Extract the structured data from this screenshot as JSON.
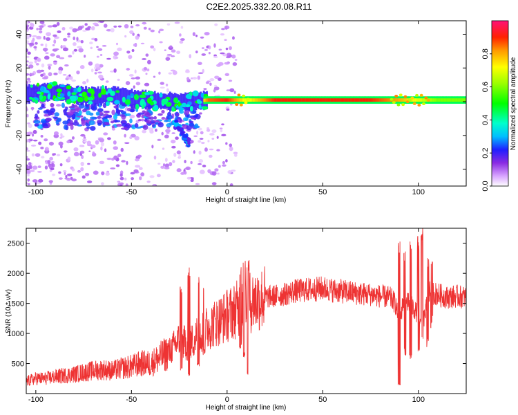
{
  "title": "C2E2.2025.332.20.08.R11",
  "chart_data": [
    {
      "type": "heatmap",
      "xlabel": "Height of straight line (km)",
      "ylabel": "Frequency (Hz)",
      "xlim": [
        -105,
        125
      ],
      "ylim": [
        -50,
        48
      ],
      "xticks": [
        -100,
        -50,
        0,
        50,
        100
      ],
      "yticks": [
        -40,
        -20,
        0,
        20,
        40
      ],
      "colorbar": {
        "label": "Normalized spectral amplitude",
        "range": [
          0,
          1
        ],
        "ticks": [
          0.0,
          0.2,
          0.4,
          0.6,
          0.8
        ]
      },
      "ridge": {
        "frequency_hz": 1,
        "x_start": -15,
        "x_end": 125,
        "peak_amplitude": 0.95,
        "segments": [
          {
            "x": -100,
            "f": 5,
            "a": 0.35
          },
          {
            "x": -90,
            "f": 6,
            "a": 0.3
          },
          {
            "x": -80,
            "f": 4,
            "a": 0.35
          },
          {
            "x": -70,
            "f": 3,
            "a": 0.3
          },
          {
            "x": -60,
            "f": 4,
            "a": 0.3
          },
          {
            "x": -50,
            "f": 2,
            "a": 0.4
          },
          {
            "x": -40,
            "f": 1,
            "a": 0.4
          },
          {
            "x": -30,
            "f": 0,
            "a": 0.35
          },
          {
            "x": -20,
            "f": 0,
            "a": 0.4
          },
          {
            "x": -10,
            "f": 1,
            "a": 0.85
          },
          {
            "x": 0,
            "f": 1,
            "a": 0.9
          },
          {
            "x": 10,
            "f": 1,
            "a": 0.7
          },
          {
            "x": 25,
            "f": 1,
            "a": 0.9
          },
          {
            "x": 50,
            "f": 1,
            "a": 0.9
          },
          {
            "x": 75,
            "f": 1,
            "a": 0.9
          },
          {
            "x": 90,
            "f": 1,
            "a": 0.8
          },
          {
            "x": 100,
            "f": 1,
            "a": 0.7
          },
          {
            "x": 110,
            "f": 1,
            "a": 0.6
          },
          {
            "x": 125,
            "f": 1,
            "a": 0.6
          }
        ]
      }
    },
    {
      "type": "line",
      "xlabel": "Height of straight line (km)",
      "ylabel": "SNR (10 * v/v)",
      "xlim": [
        -105,
        125
      ],
      "ylim": [
        0,
        2750
      ],
      "xticks": [
        -100,
        -50,
        0,
        50,
        100
      ],
      "yticks": [
        500,
        1000,
        1500,
        2000,
        2500
      ],
      "color": "#ee3333",
      "series": [
        {
          "x": [
            -105,
            -100,
            -95,
            -90,
            -85,
            -80,
            -75,
            -70,
            -65,
            -60,
            -55,
            -50,
            -45,
            -40,
            -35,
            -30,
            -25,
            -20,
            -15,
            -10,
            -5,
            0,
            5,
            10,
            15,
            20,
            25,
            30,
            35,
            40,
            45,
            50,
            55,
            60,
            65,
            70,
            75,
            80,
            85,
            88,
            90,
            92,
            95,
            98,
            100,
            103,
            106,
            110,
            115,
            120,
            125
          ],
          "y": [
            200,
            250,
            250,
            280,
            300,
            320,
            350,
            380,
            400,
            380,
            420,
            450,
            500,
            500,
            600,
            700,
            900,
            800,
            1000,
            1100,
            1200,
            1300,
            1400,
            1500,
            1550,
            1600,
            1620,
            1650,
            1700,
            1720,
            1730,
            1750,
            1720,
            1700,
            1680,
            1660,
            1650,
            1620,
            1600,
            1500,
            1200,
            1500,
            1500,
            1400,
            1300,
            1250,
            1700,
            1650,
            1600,
            1620,
            1600
          ]
        }
      ],
      "spikes": [
        {
          "x": -24,
          "peak": 1800,
          "low": 400
        },
        {
          "x": -20,
          "peak": 2100,
          "low": 300
        },
        {
          "x": -15,
          "peak": 2050,
          "low": 500
        },
        {
          "x": -12,
          "peak": 1900,
          "low": 700
        },
        {
          "x": 7,
          "peak": 2150,
          "low": 800
        },
        {
          "x": 9,
          "peak": 2300,
          "low": 650
        },
        {
          "x": 11,
          "peak": 2250,
          "low": 350
        },
        {
          "x": 90,
          "peak": 2550,
          "low": 150
        },
        {
          "x": 93,
          "peak": 2450,
          "low": 700
        },
        {
          "x": 96,
          "peak": 2600,
          "low": 600
        },
        {
          "x": 100,
          "peak": 2650,
          "low": 700
        },
        {
          "x": 102,
          "peak": 2750,
          "low": 900
        },
        {
          "x": 105,
          "peak": 2300,
          "low": 850
        },
        {
          "x": 107,
          "peak": 2200,
          "low": 1200
        }
      ]
    }
  ]
}
